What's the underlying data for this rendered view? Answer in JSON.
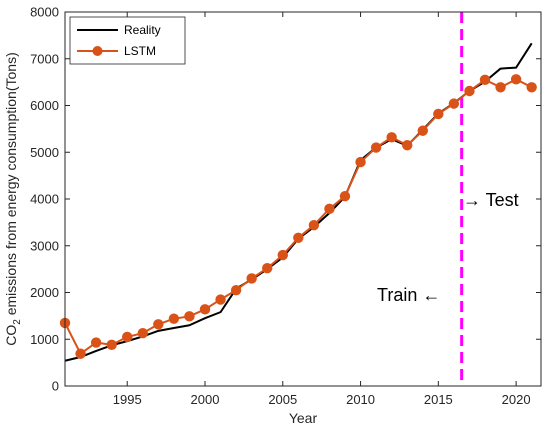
{
  "chart_data": {
    "type": "line",
    "xlabel": "Year",
    "ylabel": {
      "prefix": "CO",
      "subscript": "2",
      "suffix": " emissions from energy consumption(Tons)"
    },
    "xlim": [
      1991,
      2021.6
    ],
    "ylim": [
      0,
      8000
    ],
    "xticks": [
      1995,
      2000,
      2005,
      2010,
      2015,
      2020
    ],
    "yticks": [
      0,
      1000,
      2000,
      3000,
      4000,
      5000,
      6000,
      7000,
      8000
    ],
    "grid": false,
    "legend_placement": "top-left",
    "series": [
      {
        "name": "Reality",
        "color": "#000000",
        "marker": "none",
        "x": [
          1991,
          1992,
          1993,
          1994,
          1995,
          1996,
          1997,
          1998,
          1999,
          2000,
          2001,
          2002,
          2003,
          2004,
          2005,
          2006,
          2007,
          2008,
          2009,
          2010,
          2011,
          2012,
          2013,
          2014,
          2015,
          2016,
          2017,
          2018,
          2019,
          2020,
          2021
        ],
        "values": [
          540,
          620,
          750,
          870,
          960,
          1060,
          1180,
          1240,
          1300,
          1450,
          1580,
          2080,
          2280,
          2500,
          2750,
          3150,
          3400,
          3700,
          4050,
          4830,
          5100,
          5280,
          5140,
          5480,
          5830,
          6050,
          6310,
          6510,
          6790,
          6810,
          7330
        ]
      },
      {
        "name": "LSTM",
        "color": "#d95319",
        "marker": "circle",
        "x": [
          1991,
          1992,
          1993,
          1994,
          1995,
          1996,
          1997,
          1998,
          1999,
          2000,
          2001,
          2002,
          2003,
          2004,
          2005,
          2006,
          2007,
          2008,
          2009,
          2010,
          2011,
          2012,
          2013,
          2014,
          2015,
          2016,
          2017,
          2018,
          2019,
          2020,
          2021
        ],
        "values": [
          1350,
          690,
          930,
          880,
          1050,
          1130,
          1320,
          1440,
          1490,
          1640,
          1850,
          2050,
          2300,
          2520,
          2800,
          3170,
          3440,
          3790,
          4060,
          4790,
          5100,
          5320,
          5150,
          5460,
          5820,
          6040,
          6310,
          6550,
          6390,
          6560,
          6390
        ]
      }
    ],
    "divider": {
      "x": 2016.5,
      "color": "#ff00ff"
    },
    "annotations": {
      "train": "Train ←",
      "test": "→ Test"
    }
  }
}
